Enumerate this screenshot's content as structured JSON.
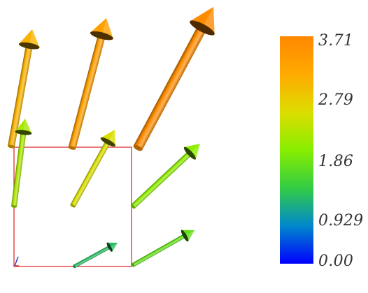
{
  "scene": {
    "background": "#ffffff",
    "outline_color": "#e03030",
    "axis_x_color": "#e03030",
    "axis_y_color": "#2040e0"
  },
  "colorbar": {
    "min": 0,
    "max": 3.71,
    "stops": [
      "#0000ff",
      "#0088cc",
      "#33cc44",
      "#88ee00",
      "#dddd00",
      "#ffaa00",
      "#ff8800"
    ],
    "ticks": [
      {
        "value": 3.71,
        "label": "3.71"
      },
      {
        "value": 2.79,
        "label": "2.79"
      },
      {
        "value": 1.86,
        "label": "1.86"
      },
      {
        "value": 0.929,
        "label": "0.929"
      },
      {
        "value": 0,
        "label": "0.00"
      }
    ]
  },
  "glyphs": [
    {
      "name": "arrow-top-left",
      "magnitude": 3.0
    },
    {
      "name": "arrow-top-center",
      "magnitude": 3.3
    },
    {
      "name": "arrow-top-right",
      "magnitude": 3.65
    },
    {
      "name": "arrow-mid-left",
      "magnitude": 2.1
    },
    {
      "name": "arrow-mid-center",
      "magnitude": 2.45
    },
    {
      "name": "arrow-mid-right",
      "magnitude": 1.9
    },
    {
      "name": "arrow-low-center",
      "magnitude": 1.1
    },
    {
      "name": "arrow-low-right",
      "magnitude": 1.6
    }
  ]
}
